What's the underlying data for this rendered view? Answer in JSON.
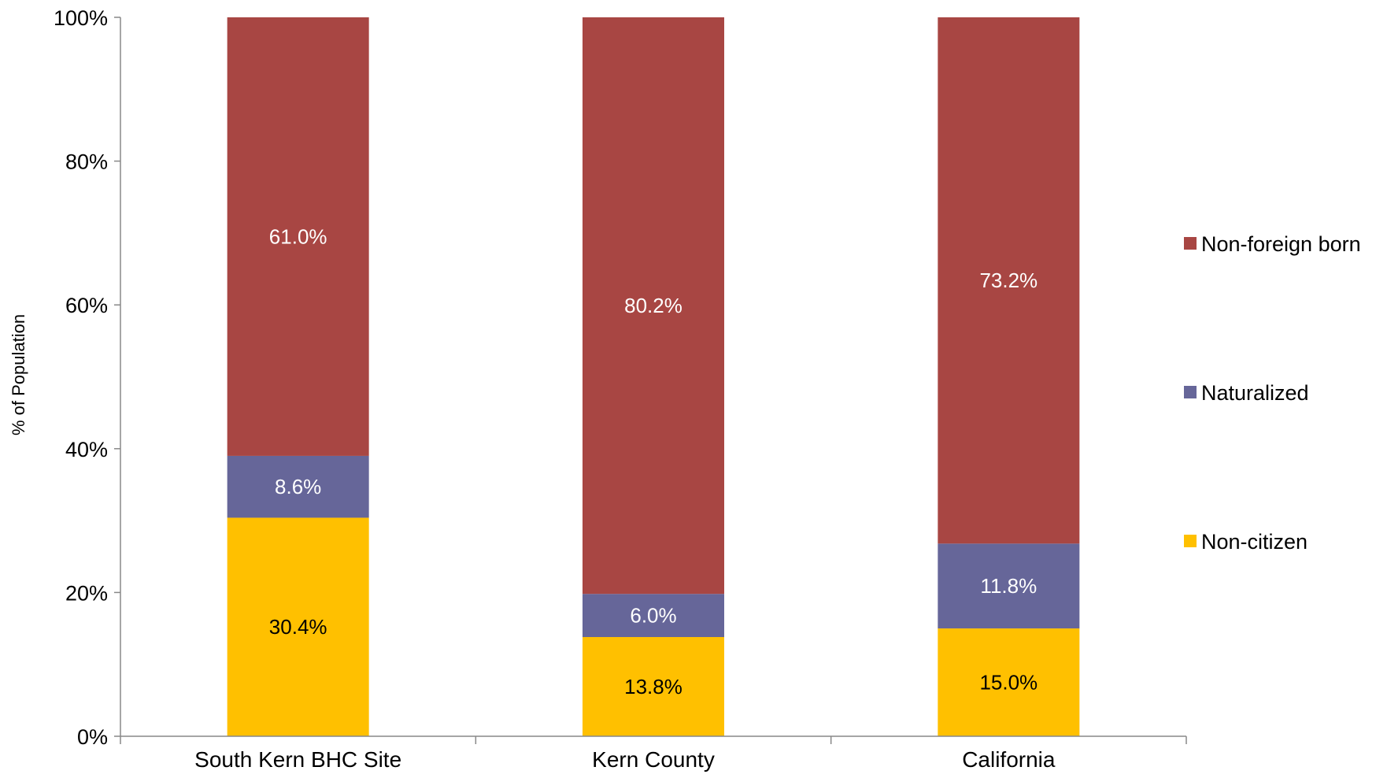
{
  "chart_data": {
    "type": "bar",
    "stacked": true,
    "title": "",
    "xlabel": "",
    "ylabel": "% of Population",
    "ylim": [
      0,
      100
    ],
    "yticks": [
      "0%",
      "20%",
      "40%",
      "60%",
      "80%",
      "100%"
    ],
    "ytick_values": [
      0,
      20,
      40,
      60,
      80,
      100
    ],
    "categories": [
      "South Kern BHC Site",
      "Kern County",
      "California"
    ],
    "grid": false,
    "legend_position": "right",
    "series": [
      {
        "name": "Non-citizen",
        "color": "#FFC000",
        "label_color": "#000000",
        "values": [
          30.4,
          13.8,
          15.0
        ],
        "labels": [
          "30.4%",
          "13.8%",
          "15.0%"
        ]
      },
      {
        "name": "Naturalized",
        "color": "#666699",
        "label_color": "#ffffff",
        "values": [
          8.6,
          6.0,
          11.8
        ],
        "labels": [
          "8.6%",
          "6.0%",
          "11.8%"
        ]
      },
      {
        "name": "Non-foreign born",
        "color": "#A84643",
        "label_color": "#ffffff",
        "values": [
          61.0,
          80.2,
          73.2
        ],
        "labels": [
          "61.0%",
          "80.2%",
          "73.2%"
        ]
      }
    ],
    "legend_order": [
      "Non-foreign born",
      "Naturalized",
      "Non-citizen"
    ]
  }
}
